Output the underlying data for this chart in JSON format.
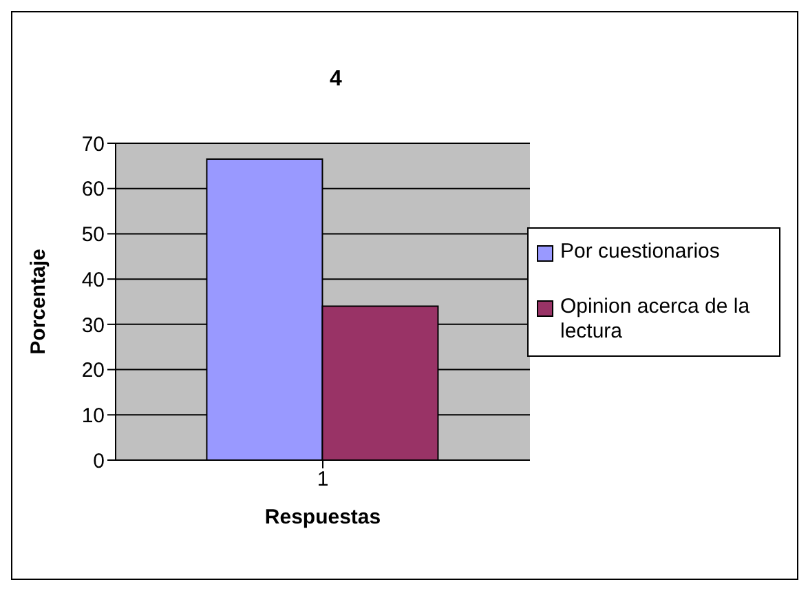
{
  "chart_data": {
    "type": "bar",
    "title": "4",
    "xlabel": "Respuestas",
    "ylabel": "Porcentaje",
    "categories": [
      "1"
    ],
    "series": [
      {
        "name": "Por cuestionarios",
        "color": "#9999ff",
        "values": [
          66.5
        ]
      },
      {
        "name": "Opinion acerca de la lectura",
        "color": "#993366",
        "values": [
          34
        ]
      }
    ],
    "ylim": [
      0,
      70
    ],
    "yticks": [
      0,
      10,
      20,
      30,
      40,
      50,
      60,
      70
    ],
    "grid": "y",
    "legend": "right"
  }
}
